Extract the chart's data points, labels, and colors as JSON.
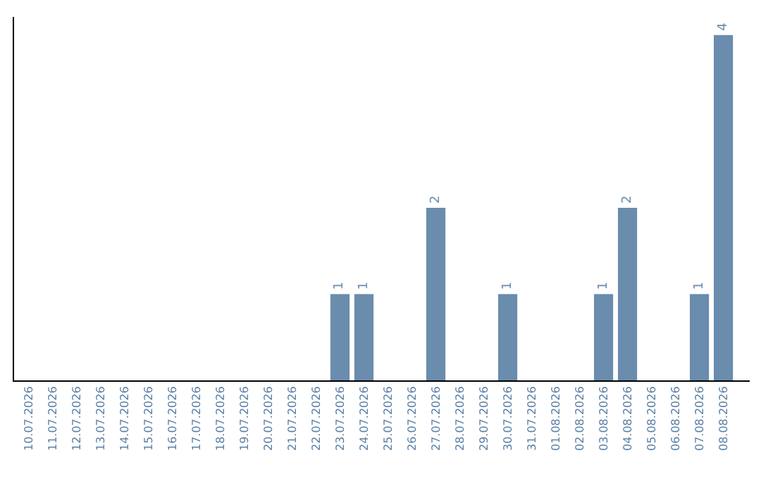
{
  "chart_data": {
    "type": "bar",
    "categories": [
      "10.07.2026",
      "11.07.2026",
      "12.07.2026",
      "13.07.2026",
      "14.07.2026",
      "15.07.2026",
      "16.07.2026",
      "17.07.2026",
      "18.07.2026",
      "19.07.2026",
      "20.07.2026",
      "21.07.2026",
      "22.07.2026",
      "23.07.2026",
      "24.07.2026",
      "25.07.2026",
      "26.07.2026",
      "27.07.2026",
      "28.07.2026",
      "29.07.2026",
      "30.07.2026",
      "31.07.2026",
      "01.08.2026",
      "02.08.2026",
      "03.08.2026",
      "04.08.2026",
      "05.08.2026",
      "06.08.2026",
      "07.08.2026",
      "08.08.2026"
    ],
    "values": [
      null,
      null,
      null,
      null,
      null,
      null,
      null,
      null,
      null,
      null,
      null,
      null,
      null,
      1,
      1,
      null,
      null,
      2,
      null,
      null,
      1,
      null,
      null,
      null,
      1,
      2,
      null,
      null,
      1,
      4
    ],
    "value_labels": [
      null,
      null,
      null,
      null,
      null,
      null,
      null,
      null,
      null,
      null,
      null,
      null,
      null,
      "1",
      "1",
      null,
      null,
      "2",
      null,
      null,
      "1",
      null,
      null,
      null,
      "1",
      "2",
      null,
      null,
      "1",
      "4"
    ],
    "color": "#6a8cad"
  }
}
